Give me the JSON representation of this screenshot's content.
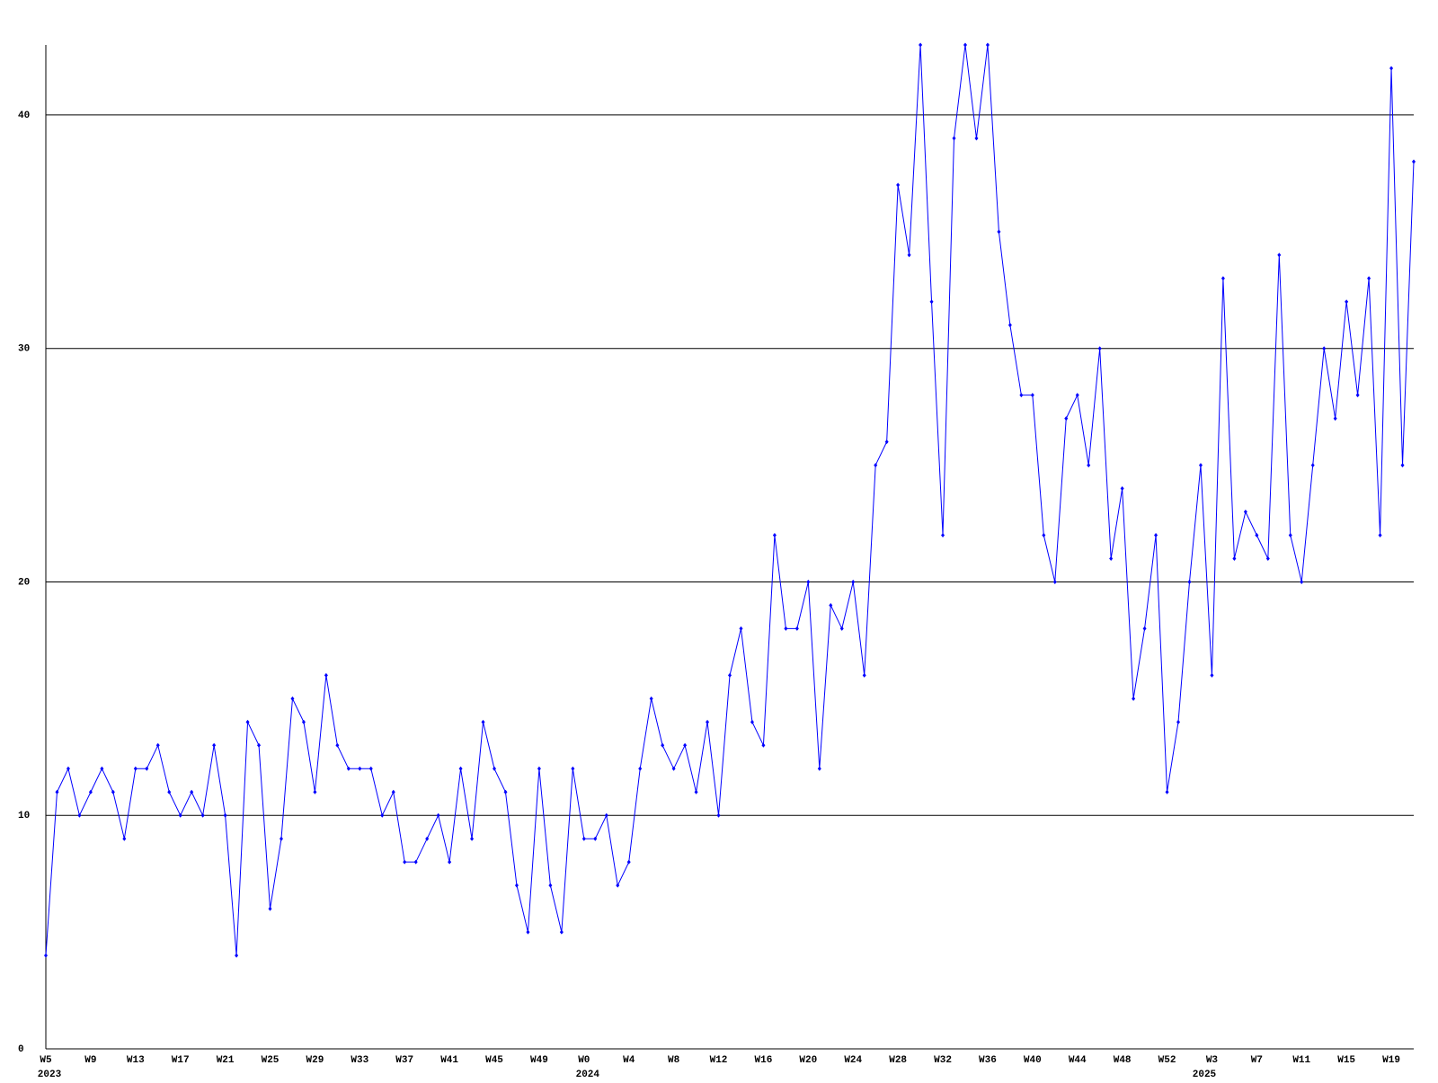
{
  "chart_data": {
    "type": "line",
    "categories": [
      "W5",
      null,
      null,
      null,
      "W9",
      null,
      null,
      null,
      "W13",
      null,
      null,
      null,
      "W17",
      null,
      null,
      null,
      "W21",
      null,
      null,
      null,
      "W25",
      null,
      null,
      null,
      "W29",
      null,
      null,
      null,
      "W33",
      null,
      null,
      null,
      "W37",
      null,
      null,
      null,
      "W41",
      null,
      null,
      null,
      "W45",
      null,
      null,
      null,
      "W49",
      null,
      null,
      null,
      "W0",
      null,
      null,
      null,
      "W4",
      null,
      null,
      null,
      "W8",
      null,
      null,
      null,
      "W12",
      null,
      null,
      null,
      "W16",
      null,
      null,
      null,
      "W20",
      null,
      null,
      null,
      "W24",
      null,
      null,
      null,
      "W28",
      null,
      null,
      null,
      "W32",
      null,
      null,
      null,
      "W36",
      null,
      null,
      null,
      "W40",
      null,
      null,
      null,
      "W44",
      null,
      null,
      null,
      "W48",
      null,
      null,
      null,
      "W52",
      null,
      null,
      null,
      "W3",
      null,
      null,
      null,
      "W7",
      null,
      null,
      null,
      "W11",
      null,
      null,
      null,
      "W15",
      null,
      null,
      null,
      "W19",
      null,
      null
    ],
    "x_groups": [
      "2023",
      null,
      null,
      null,
      null,
      null,
      null,
      null,
      null,
      null,
      null,
      null,
      null,
      null,
      null,
      null,
      null,
      null,
      null,
      null,
      null,
      null,
      null,
      null,
      null,
      null,
      null,
      null,
      null,
      null,
      null,
      null,
      null,
      null,
      null,
      null,
      null,
      null,
      null,
      null,
      null,
      null,
      null,
      null,
      null,
      null,
      null,
      null,
      "2024",
      null,
      null,
      null,
      null,
      null,
      null,
      null,
      null,
      null,
      null,
      null,
      null,
      null,
      null,
      null,
      null,
      null,
      null,
      null,
      null,
      null,
      null,
      null,
      null,
      null,
      null,
      null,
      null,
      null,
      null,
      null,
      null,
      null,
      null,
      null,
      null,
      null,
      null,
      null,
      null,
      null,
      null,
      null,
      null,
      null,
      null,
      null,
      null,
      null,
      null,
      null,
      null,
      null,
      null,
      "2025",
      null,
      null,
      null,
      null,
      null,
      null,
      null,
      null,
      null,
      null,
      null,
      null,
      null,
      null,
      null,
      null,
      null,
      null,
      null,
      null
    ],
    "values": [
      4,
      11,
      12,
      10,
      11,
      12,
      11,
      9,
      12,
      12,
      13,
      11,
      10,
      11,
      10,
      13,
      10,
      4,
      14,
      13,
      6,
      9,
      15,
      14,
      11,
      16,
      13,
      12,
      12,
      12,
      10,
      11,
      8,
      8,
      9,
      10,
      8,
      12,
      9,
      14,
      12,
      11,
      7,
      5,
      12,
      7,
      5,
      12,
      9,
      9,
      10,
      7,
      8,
      12,
      15,
      13,
      12,
      13,
      11,
      14,
      10,
      16,
      18,
      14,
      13,
      22,
      18,
      18,
      20,
      12,
      19,
      18,
      20,
      16,
      25,
      26,
      37,
      34,
      43,
      32,
      22,
      39,
      43,
      39,
      43,
      35,
      31,
      28,
      28,
      22,
      20,
      27,
      28,
      25,
      30,
      21,
      24,
      15,
      18,
      22,
      11,
      14,
      20,
      25,
      16,
      33,
      21,
      23,
      22,
      21,
      34,
      22,
      20,
      25,
      30,
      27,
      32,
      28,
      33,
      22,
      42,
      25,
      38
    ],
    "color": "#0000ff",
    "ylim": [
      0,
      43
    ],
    "yticks": [
      0,
      10,
      20,
      30,
      40
    ],
    "grid": true
  }
}
